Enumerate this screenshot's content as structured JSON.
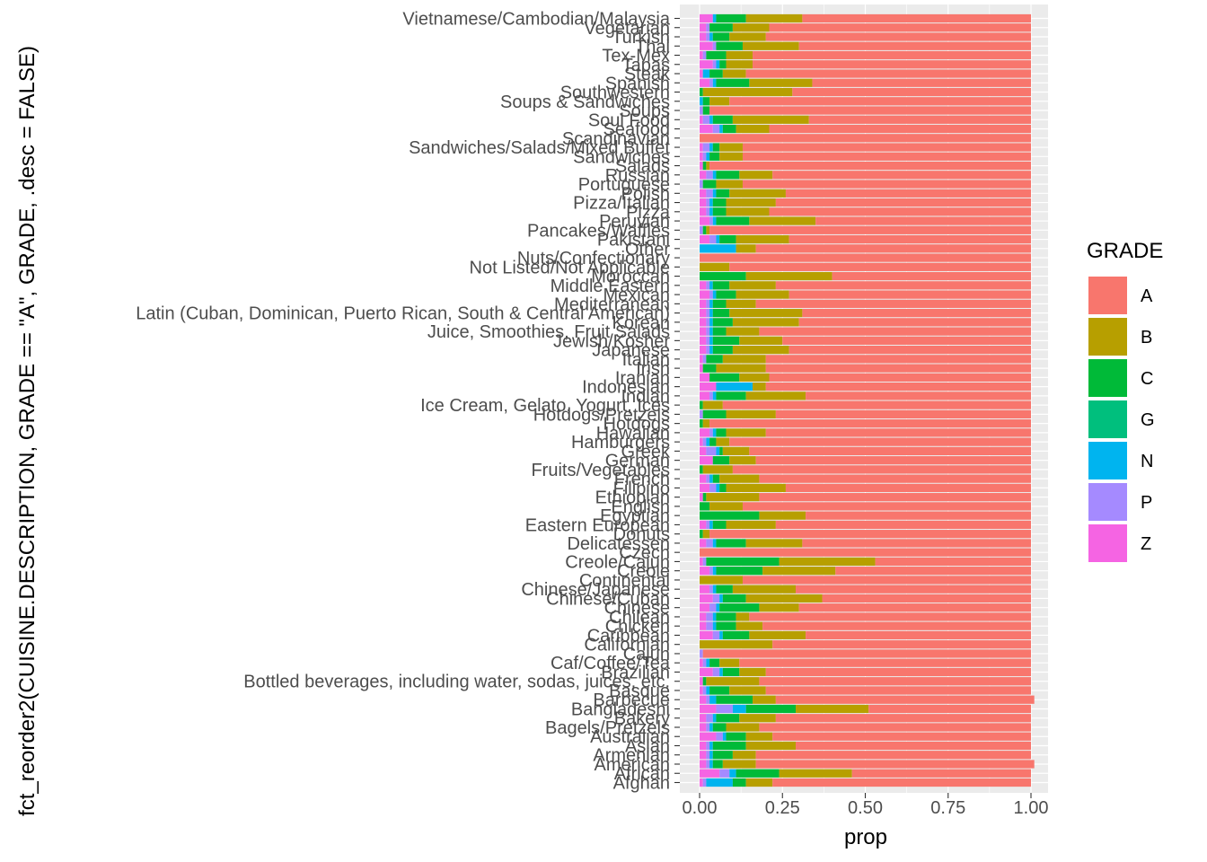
{
  "chart_data": {
    "type": "bar",
    "orientation": "horizontal",
    "stacked": true,
    "xlabel": "prop",
    "ylabel": "fct_reorder2(CUISINE.DESCRIPTION, GRADE == \"A\", GRADE, .desc = FALSE)",
    "xlim": [
      0,
      1
    ],
    "x_ticks": [
      0,
      0.25,
      0.5,
      0.75,
      1
    ],
    "x_tick_labels": [
      "0.00",
      "0.25",
      "0.50",
      "0.75",
      "1.00"
    ],
    "grid": true,
    "legend": {
      "title": "GRADE",
      "position": "right",
      "items": [
        {
          "label": "A",
          "color": "#F8766D"
        },
        {
          "label": "B",
          "color": "#B79F00"
        },
        {
          "label": "C",
          "color": "#00BA38"
        },
        {
          "label": "G",
          "color": "#00BF7D"
        },
        {
          "label": "N",
          "color": "#00B4EF"
        },
        {
          "label": "P",
          "color": "#A58AFF"
        },
        {
          "label": "Z",
          "color": "#F564E3"
        }
      ]
    },
    "grades": [
      "Z",
      "P",
      "N",
      "G",
      "C",
      "B",
      "A"
    ],
    "colors": {
      "A": "#F8766D",
      "B": "#B79F00",
      "C": "#00BA38",
      "G": "#00BF7D",
      "N": "#00B4EF",
      "P": "#A58AFF",
      "Z": "#F564E3"
    },
    "categories": [
      "Vietnamese/Cambodian/Malaysia",
      "Vegetarian",
      "Turkish",
      "Thai",
      "Tex-Mex",
      "Tapas",
      "Steak",
      "Spanish",
      "Southwestern",
      "Soups & Sandwiches",
      "Soups",
      "Soul Food",
      "Seafood",
      "Scandinavian",
      "Sandwiches/Salads/Mixed Buffet",
      "Sandwiches",
      "Salads",
      "Russian",
      "Portuguese",
      "Polish",
      "Pizza/Italian",
      "Pizza",
      "Peruvian",
      "Pancakes/Waffles",
      "Pakistani",
      "Other",
      "Nuts/Confectionary",
      "Not Listed/Not Applicable",
      "Moroccan",
      "Middle Eastern",
      "Mexican",
      "Mediterranean",
      "Latin (Cuban, Dominican, Puerto Rican, South & Central American)",
      "Korean",
      "Juice, Smoothies, Fruit Salads",
      "Jewish/Kosher",
      "Japanese",
      "Italian",
      "Irish",
      "Iranian",
      "Indonesian",
      "Indian",
      "Ice Cream, Gelato, Yogurt, Ices",
      "Hotdogs/Pretzels",
      "Hotdogs",
      "Hawaiian",
      "Hamburgers",
      "Greek",
      "German",
      "Fruits/Vegetables",
      "French",
      "Filipino",
      "Ethiopian",
      "English",
      "Egyptian",
      "Eastern European",
      "Donuts",
      "Delicatessen",
      "Czech",
      "Creole/Cajun",
      "Creole",
      "Continental",
      "Chinese/Japanese",
      "Chinese/Cuban",
      "Chinese",
      "Chilean",
      "Chicken",
      "Caribbean",
      "Californian",
      "Cajun",
      "Caf/Coffee/Tea",
      "Brazilian",
      "Bottled beverages, including water, sodas, juices, etc.",
      "Basque",
      "Barbecue",
      "Bangladeshi",
      "Bakery",
      "Bagels/Pretzels",
      "Australian",
      "Asian",
      "Armenian",
      "American",
      "African",
      "Afghan"
    ],
    "values": {
      "Z": [
        0.04,
        0.02,
        0.02,
        0.04,
        0.01,
        0.04,
        0.01,
        0.03,
        0,
        0,
        0,
        0.01,
        0.04,
        0,
        0.01,
        0.01,
        0.01,
        0.02,
        0,
        0.02,
        0.02,
        0.02,
        0.03,
        0,
        0.03,
        0,
        0,
        0,
        0,
        0.02,
        0.03,
        0.02,
        0.02,
        0.02,
        0.02,
        0.02,
        0.02,
        0.01,
        0.01,
        0.03,
        0.05,
        0.03,
        0,
        0,
        0,
        0.03,
        0.01,
        0.02,
        0.04,
        0,
        0.02,
        0.03,
        0.01,
        0,
        0,
        0.02,
        0,
        0.02,
        0,
        0.01,
        0.03,
        0,
        0.03,
        0.04,
        0.03,
        0.02,
        0.02,
        0.04,
        0,
        0,
        0.01,
        0.04,
        0.01,
        0.01,
        0.02,
        0.05,
        0.02,
        0.02,
        0.05,
        0.02,
        0.02,
        0.02,
        0.06,
        0.01
      ],
      "P": [
        0,
        0.01,
        0.01,
        0.01,
        0.01,
        0.01,
        0,
        0.01,
        0,
        0,
        0.01,
        0.02,
        0.02,
        0,
        0.02,
        0.01,
        0,
        0.02,
        0.01,
        0.02,
        0.01,
        0.01,
        0.01,
        0.01,
        0.02,
        0,
        0,
        0,
        0,
        0.01,
        0.01,
        0.01,
        0.01,
        0.01,
        0.01,
        0.01,
        0.01,
        0.01,
        0,
        0,
        0,
        0.01,
        0,
        0.01,
        0,
        0.01,
        0.01,
        0.03,
        0,
        0,
        0.01,
        0.02,
        0,
        0,
        0,
        0.01,
        0,
        0.02,
        0,
        0.01,
        0.01,
        0,
        0.01,
        0.02,
        0.02,
        0.02,
        0.02,
        0.02,
        0,
        0.01,
        0.01,
        0.02,
        0,
        0.01,
        0.01,
        0.05,
        0.02,
        0.01,
        0.02,
        0.01,
        0.01,
        0.01,
        0.03,
        0.01
      ],
      "N": [
        0.01,
        0,
        0.01,
        0,
        0,
        0.01,
        0.02,
        0.01,
        0,
        0.01,
        0,
        0.01,
        0.01,
        0,
        0.01,
        0.01,
        0,
        0.01,
        0,
        0.01,
        0.01,
        0.01,
        0.01,
        0,
        0.01,
        0.11,
        0,
        0,
        0,
        0.01,
        0.01,
        0.01,
        0.01,
        0.01,
        0.01,
        0.01,
        0.01,
        0,
        0,
        0,
        0.11,
        0.01,
        0,
        0,
        0,
        0.01,
        0.01,
        0.01,
        0,
        0,
        0.01,
        0.01,
        0,
        0,
        0,
        0.01,
        0,
        0.01,
        0,
        0,
        0.01,
        0,
        0.01,
        0.01,
        0.01,
        0.01,
        0.01,
        0.01,
        0,
        0,
        0.01,
        0.01,
        0,
        0.01,
        0.02,
        0.04,
        0.01,
        0.01,
        0.01,
        0.01,
        0.01,
        0.01,
        0.02,
        0.08
      ],
      "G": [
        0,
        0,
        0,
        0,
        0,
        0,
        0,
        0,
        0,
        0,
        0,
        0,
        0,
        0,
        0,
        0,
        0,
        0,
        0,
        0,
        0,
        0,
        0,
        0,
        0,
        0,
        0,
        0,
        0,
        0,
        0,
        0,
        0,
        0,
        0,
        0,
        0,
        0,
        0,
        0,
        0,
        0,
        0,
        0,
        0,
        0,
        0,
        0,
        0,
        0,
        0,
        0,
        0,
        0,
        0,
        0,
        0,
        0,
        0,
        0,
        0,
        0,
        0,
        0,
        0,
        0,
        0,
        0,
        0,
        0,
        0,
        0,
        0,
        0,
        0,
        0,
        0,
        0,
        0,
        0,
        0,
        0,
        0,
        0
      ],
      "C": [
        0.09,
        0.07,
        0.05,
        0.08,
        0.06,
        0.02,
        0.04,
        0.1,
        0.01,
        0.02,
        0.02,
        0.06,
        0.04,
        0,
        0.02,
        0.03,
        0.01,
        0.07,
        0.04,
        0.04,
        0.04,
        0.04,
        0.1,
        0.01,
        0.05,
        0,
        0,
        0,
        0.14,
        0.05,
        0.06,
        0.04,
        0.05,
        0.06,
        0.04,
        0.08,
        0.06,
        0.05,
        0.04,
        0.09,
        0,
        0.09,
        0.01,
        0.07,
        0.01,
        0.03,
        0.02,
        0.01,
        0.05,
        0.01,
        0.02,
        0.02,
        0.01,
        0.03,
        0.18,
        0.04,
        0.01,
        0.09,
        0,
        0.22,
        0.14,
        0,
        0.05,
        0.07,
        0.12,
        0.06,
        0.06,
        0.08,
        0,
        0,
        0.03,
        0.05,
        0.01,
        0.06,
        0.11,
        0.15,
        0.07,
        0.04,
        0.06,
        0.1,
        0.06,
        0.03,
        0.13,
        0.04
      ],
      "B": [
        0.17,
        0.11,
        0.11,
        0.17,
        0.08,
        0.08,
        0.07,
        0.19,
        0.27,
        0.06,
        0,
        0.23,
        0.1,
        0,
        0.07,
        0.07,
        0.01,
        0.1,
        0.08,
        0.17,
        0.15,
        0.13,
        0.2,
        0.01,
        0.16,
        0.06,
        0,
        0.09,
        0.26,
        0.14,
        0.16,
        0.09,
        0.22,
        0.2,
        0.1,
        0.13,
        0.17,
        0.13,
        0.15,
        0.09,
        0.04,
        0.18,
        0.06,
        0.15,
        0.02,
        0.12,
        0.04,
        0.08,
        0.08,
        0.09,
        0.12,
        0.18,
        0.16,
        0.1,
        0.14,
        0.15,
        0.02,
        0.17,
        0,
        0.29,
        0.22,
        0.13,
        0.19,
        0.23,
        0.12,
        0.04,
        0.08,
        0.17,
        0.22,
        0,
        0.06,
        0.08,
        0.16,
        0.11,
        0.07,
        0.22,
        0.11,
        0.1,
        0.08,
        0.15,
        0.07,
        0.1,
        0.22,
        0.08
      ],
      "A": [
        0.69,
        0.79,
        0.8,
        0.7,
        0.84,
        0.84,
        0.86,
        0.66,
        0.72,
        0.91,
        0.97,
        0.67,
        0.79,
        1,
        0.87,
        0.87,
        0.97,
        0.78,
        0.87,
        0.74,
        0.77,
        0.79,
        0.65,
        0.97,
        0.73,
        0.83,
        1,
        0.91,
        0.6,
        0.77,
        0.73,
        0.83,
        0.69,
        0.7,
        0.82,
        0.75,
        0.73,
        0.8,
        0.8,
        0.79,
        0.8,
        0.68,
        0.93,
        0.77,
        0.97,
        0.8,
        0.91,
        0.85,
        0.83,
        0.9,
        0.82,
        0.74,
        0.82,
        0.87,
        0.68,
        0.77,
        0.97,
        0.69,
        1,
        0.47,
        0.59,
        0.87,
        0.71,
        0.63,
        0.7,
        0.85,
        0.81,
        0.68,
        0.78,
        0.99,
        0.88,
        0.8,
        0.82,
        0.8,
        0.78,
        0.49,
        0.77,
        0.82,
        0.78,
        0.71,
        0.83,
        0.84,
        0.54,
        0.78
      ]
    }
  }
}
